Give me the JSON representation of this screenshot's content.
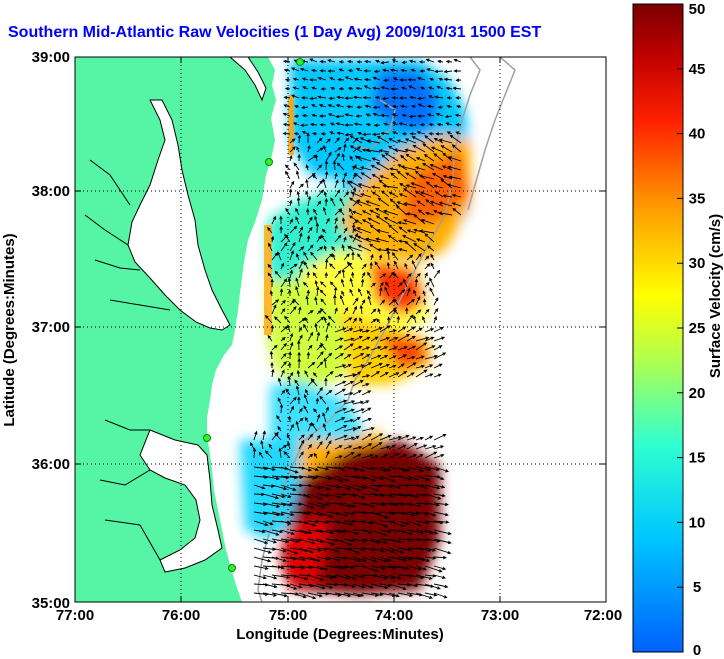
{
  "title": "Southern Mid-Atlantic Raw Velocities (1 Day Avg) 2009/10/31 1500 EST",
  "x_axis": {
    "label": "Longitude (Degrees:Minutes)",
    "ticks": [
      "77:00",
      "76:00",
      "75:00",
      "74:00",
      "73:00",
      "72:00"
    ]
  },
  "y_axis": {
    "label": "Latitude (Degrees:Minutes)",
    "ticks": [
      "39:00",
      "38:00",
      "37:00",
      "36:00",
      "35:00"
    ]
  },
  "colorbar": {
    "label": "Surface Velocity (cm/s)",
    "min": 0,
    "max": 50,
    "ticks": [
      "0",
      "5",
      "10",
      "15",
      "20",
      "25",
      "30",
      "35",
      "40",
      "45",
      "50"
    ]
  },
  "colors": {
    "land": "#55f5a5",
    "title": "#0000ff",
    "coast_line": "#000000",
    "bathymetry": "#a0a0a0",
    "station": "#33ee33"
  }
}
